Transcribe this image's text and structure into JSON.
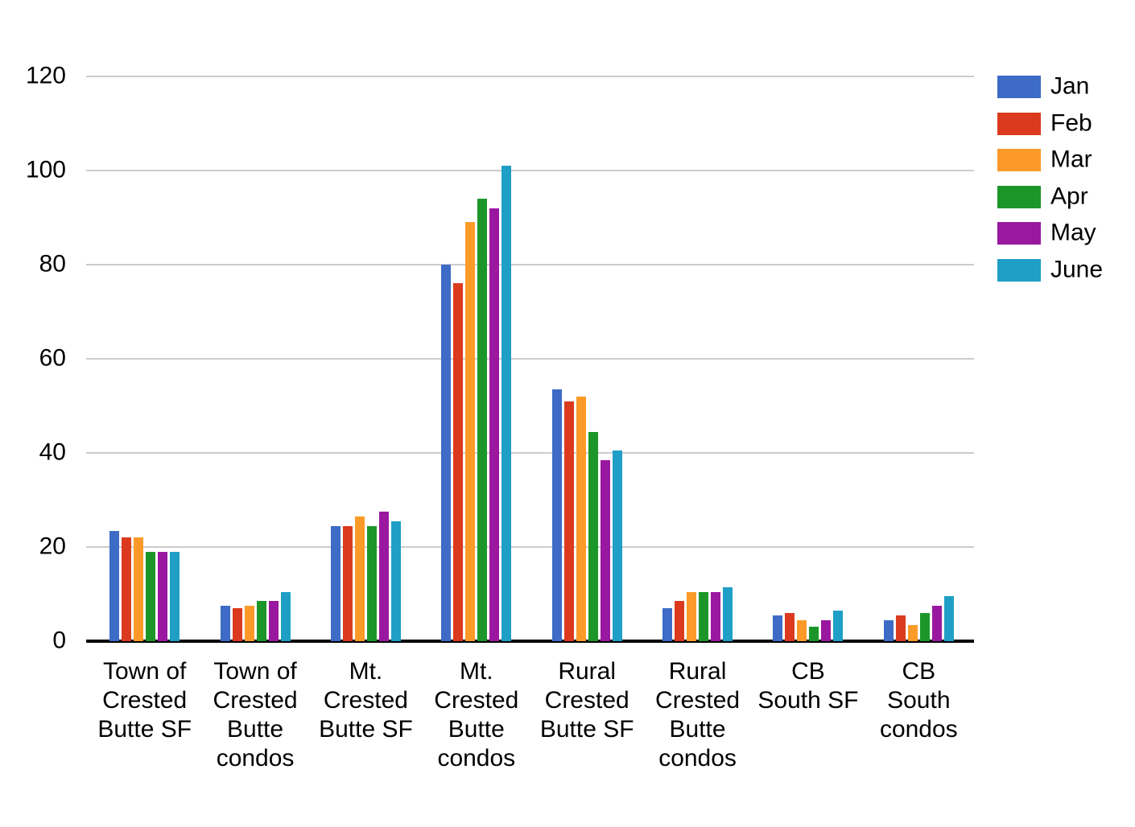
{
  "chart_data": {
    "type": "bar",
    "title": "",
    "xlabel": "",
    "ylabel": "",
    "ylim": [
      0,
      120
    ],
    "y_ticks": [
      0,
      20,
      40,
      60,
      80,
      100,
      120
    ],
    "grid": true,
    "legend_position": "right",
    "gridline_color": "#cccccc",
    "axis_color": "#000000",
    "categories": [
      "Town of Crested Butte SF",
      "Town of Crested Butte condos",
      "Mt. Crested Butte SF",
      "Mt. Crested Butte condos",
      "Rural Crested Butte SF",
      "Rural Crested Butte condos",
      "CB South SF",
      "CB South condos"
    ],
    "category_lines": [
      [
        "Town of",
        "Crested",
        "Butte SF"
      ],
      [
        "Town of",
        "Crested",
        "Butte",
        "condos"
      ],
      [
        "Mt.",
        "Crested",
        "Butte SF"
      ],
      [
        "Mt.",
        "Crested",
        "Butte",
        "condos"
      ],
      [
        "Rural",
        "Crested",
        "Butte SF"
      ],
      [
        "Rural",
        "Crested",
        "Butte",
        "condos"
      ],
      [
        "CB",
        "South SF"
      ],
      [
        "CB",
        "South",
        "condos"
      ]
    ],
    "series": [
      {
        "name": "Jan",
        "color": "#3D6BC6",
        "values": [
          23.5,
          7.5,
          24.5,
          80,
          53.5,
          7,
          5.5,
          4.5
        ]
      },
      {
        "name": "Feb",
        "color": "#DB3A1E",
        "values": [
          22,
          7,
          24.5,
          76,
          51,
          8.5,
          6,
          5.5
        ]
      },
      {
        "name": "Mar",
        "color": "#FB9A28",
        "values": [
          22,
          7.5,
          26.5,
          89,
          52,
          10.5,
          4.5,
          3.5
        ]
      },
      {
        "name": "Apr",
        "color": "#1C9629",
        "values": [
          19,
          8.5,
          24.5,
          94,
          44.5,
          10.5,
          3,
          6
        ]
      },
      {
        "name": "May",
        "color": "#9A18A0",
        "values": [
          19,
          8.5,
          27.5,
          92,
          38.5,
          10.5,
          4.5,
          7.5
        ]
      },
      {
        "name": "June",
        "color": "#1F9FC6",
        "values": [
          19,
          10.5,
          25.5,
          101,
          40.5,
          11.5,
          6.5,
          9.5
        ]
      }
    ]
  }
}
